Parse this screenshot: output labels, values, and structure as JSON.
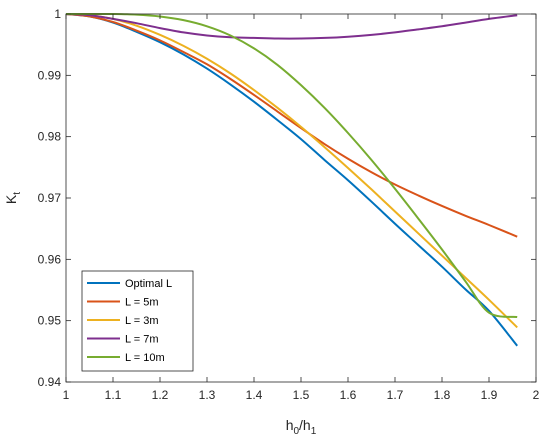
{
  "chart_data": {
    "type": "line",
    "title": "",
    "xlabel": {
      "base": "h",
      "sub1": "0",
      "sep": "/h",
      "sub2": "1"
    },
    "ylabel": {
      "base": "K",
      "sub": "t"
    },
    "xlim": [
      1,
      2
    ],
    "ylim": [
      0.94,
      1
    ],
    "xticks": [
      1,
      1.1,
      1.2,
      1.3,
      1.4,
      1.5,
      1.6,
      1.7,
      1.8,
      1.9,
      2
    ],
    "xtick_labels": [
      "1",
      "1.1",
      "1.2",
      "1.3",
      "1.4",
      "1.5",
      "1.6",
      "1.7",
      "1.8",
      "1.9",
      "2"
    ],
    "yticks": [
      0.94,
      0.95,
      0.96,
      0.97,
      0.98,
      0.99,
      1
    ],
    "ytick_labels": [
      "0.94",
      "0.95",
      "0.96",
      "0.97",
      "0.98",
      "0.99",
      "1"
    ],
    "grid": false,
    "legend_position": "bottom-left",
    "series": [
      {
        "name": "Optimal L",
        "color": "#0072BD",
        "x": [
          1.0,
          1.05,
          1.1,
          1.15,
          1.2,
          1.25,
          1.3,
          1.35,
          1.4,
          1.45,
          1.5,
          1.55,
          1.6,
          1.65,
          1.7,
          1.75,
          1.8,
          1.85,
          1.9,
          1.96
        ],
        "y": [
          1.0,
          0.9996,
          0.9986,
          0.9971,
          0.9954,
          0.9934,
          0.9911,
          0.9885,
          0.9857,
          0.9827,
          0.9796,
          0.9762,
          0.9729,
          0.9694,
          0.9658,
          0.9623,
          0.9588,
          0.9551,
          0.9516,
          0.9459
        ]
      },
      {
        "name": "L = 5m",
        "color": "#D95319",
        "x": [
          1.0,
          1.05,
          1.1,
          1.15,
          1.2,
          1.25,
          1.3,
          1.35,
          1.4,
          1.45,
          1.5,
          1.55,
          1.6,
          1.65,
          1.7,
          1.75,
          1.8,
          1.85,
          1.9,
          1.96
        ],
        "y": [
          1.0,
          0.9996,
          0.9987,
          0.9973,
          0.9957,
          0.9938,
          0.9918,
          0.9894,
          0.9868,
          0.9841,
          0.9814,
          0.9788,
          0.9764,
          0.9742,
          0.9722,
          0.9704,
          0.9687,
          0.9671,
          0.9656,
          0.9637
        ]
      },
      {
        "name": "L = 3m",
        "color": "#EDB120",
        "x": [
          1.0,
          1.05,
          1.1,
          1.15,
          1.2,
          1.25,
          1.3,
          1.35,
          1.4,
          1.45,
          1.5,
          1.55,
          1.6,
          1.65,
          1.7,
          1.75,
          1.8,
          1.85,
          1.9,
          1.96
        ],
        "y": [
          1.0,
          0.9998,
          0.9992,
          0.9981,
          0.9966,
          0.9948,
          0.9927,
          0.9903,
          0.9876,
          0.9847,
          0.9816,
          0.9783,
          0.9749,
          0.9714,
          0.9678,
          0.9642,
          0.9606,
          0.957,
          0.9534,
          0.9489
        ]
      },
      {
        "name": "L = 7m",
        "color": "#7E2F8E",
        "x": [
          1.0,
          1.05,
          1.1,
          1.15,
          1.2,
          1.25,
          1.3,
          1.35,
          1.4,
          1.45,
          1.5,
          1.55,
          1.6,
          1.65,
          1.7,
          1.75,
          1.8,
          1.85,
          1.9,
          1.96
        ],
        "y": [
          1.0,
          0.9998,
          0.9992,
          0.9985,
          0.9977,
          0.997,
          0.9965,
          0.9962,
          0.9961,
          0.996,
          0.996,
          0.9961,
          0.9963,
          0.9966,
          0.997,
          0.9975,
          0.998,
          0.9986,
          0.9992,
          0.9998
        ]
      },
      {
        "name": "L = 10m",
        "color": "#77AC30",
        "x": [
          1.0,
          1.05,
          1.1,
          1.15,
          1.2,
          1.25,
          1.3,
          1.35,
          1.4,
          1.45,
          1.5,
          1.55,
          1.6,
          1.65,
          1.7,
          1.75,
          1.8,
          1.85,
          1.9,
          1.96
        ],
        "y": [
          1.0,
          1.0,
          1.0,
          0.9999,
          0.9996,
          0.999,
          0.998,
          0.9965,
          0.9944,
          0.9917,
          0.9884,
          0.9847,
          0.9806,
          0.9762,
          0.9715,
          0.9666,
          0.9616,
          0.9564,
          0.9513,
          0.9506
        ]
      }
    ]
  }
}
